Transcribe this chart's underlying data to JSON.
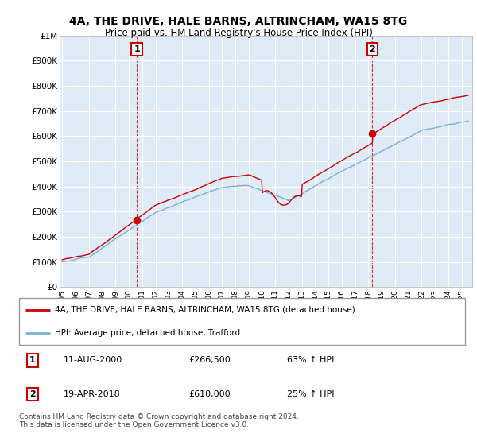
{
  "title1": "4A, THE DRIVE, HALE BARNS, ALTRINCHAM, WA15 8TG",
  "title2": "Price paid vs. HM Land Registry's House Price Index (HPI)",
  "legend_line1": "4A, THE DRIVE, HALE BARNS, ALTRINCHAM, WA15 8TG (detached house)",
  "legend_line2": "HPI: Average price, detached house, Trafford",
  "annotation1_date": "11-AUG-2000",
  "annotation1_price": "£266,500",
  "annotation1_hpi": "63% ↑ HPI",
  "annotation2_date": "19-APR-2018",
  "annotation2_price": "£610,000",
  "annotation2_hpi": "25% ↑ HPI",
  "copyright": "Contains HM Land Registry data © Crown copyright and database right 2024.\nThis data is licensed under the Open Government Licence v3.0.",
  "price_color": "#cc0000",
  "hpi_color": "#7ab0d4",
  "bg_color": "#deeaf5",
  "sale1_year": 2000.6,
  "sale1_price": 266500,
  "sale2_year": 2018.3,
  "sale2_price": 610000,
  "ylim_min": 0,
  "ylim_max": 1000000,
  "xmin": 1994.8,
  "xmax": 2025.8
}
